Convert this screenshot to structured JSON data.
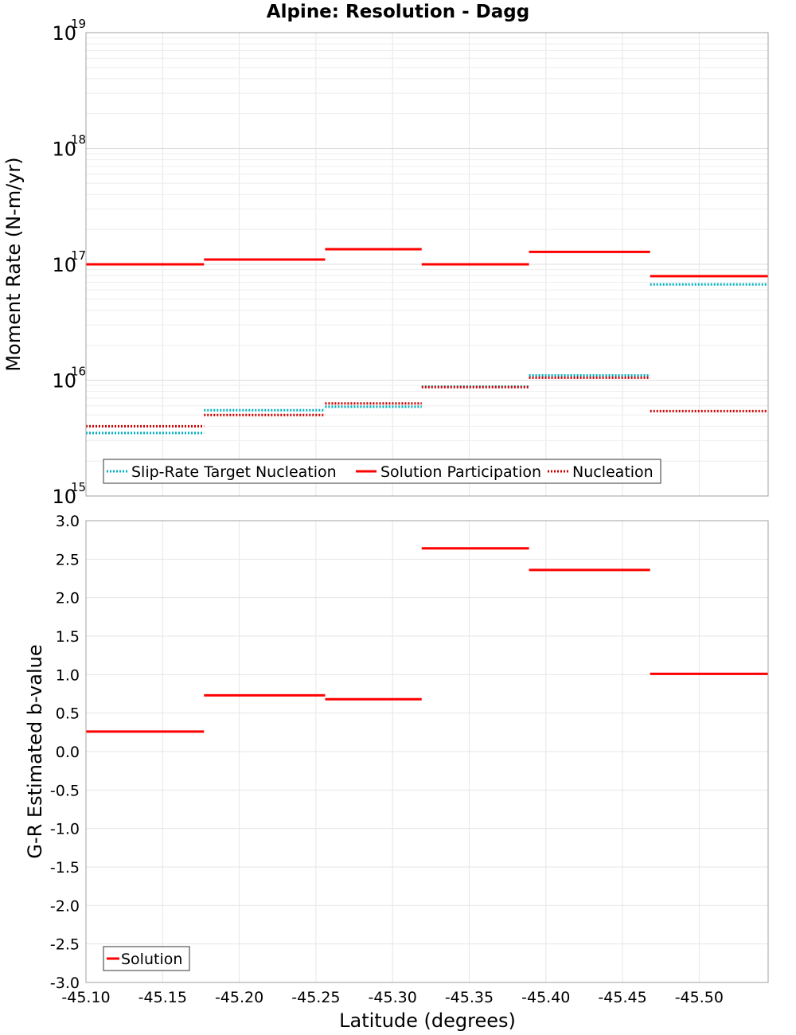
{
  "title": "Alpine: Resolution - Dagg",
  "colors": {
    "solution": "#ff0000",
    "nucleation": "#cc0000",
    "target": "#00b0c0",
    "grid": "#e6e6e6",
    "frame": "#a0a0a0"
  },
  "chart_data": [
    {
      "type": "line",
      "panel": "top",
      "ylabel": "Moment Rate (N-m/yr)",
      "yscale": "log",
      "ylim": [
        1000000000000000.0,
        1e+19
      ],
      "xlim": [
        -45.1,
        -45.545
      ],
      "y_ticks": [
        {
          "value": 1000000000000000.0,
          "base": "10",
          "exp": "15"
        },
        {
          "value": 1e+16,
          "base": "10",
          "exp": "16"
        },
        {
          "value": 1e+17,
          "base": "10",
          "exp": "17"
        },
        {
          "value": 1e+18,
          "base": "10",
          "exp": "18"
        },
        {
          "value": 1e+19,
          "base": "10",
          "exp": "19"
        }
      ],
      "grid": true,
      "legend_position": "bottom-left",
      "series": [
        {
          "name": "Slip-Rate Target Nucleation",
          "style": "dotted",
          "color_key": "target",
          "segments": [
            {
              "x0": -45.1,
              "x1": -45.177,
              "y": 3500000000000000.0
            },
            {
              "x0": -45.177,
              "x1": -45.256,
              "y": 5500000000000000.0
            },
            {
              "x0": -45.256,
              "x1": -45.319,
              "y": 5900000000000000.0
            },
            {
              "x0": -45.319,
              "x1": -45.389,
              "y": 8800000000000000.0
            },
            {
              "x0": -45.389,
              "x1": -45.468,
              "y": 1.1e+16
            },
            {
              "x0": -45.468,
              "x1": -45.545,
              "y": 6.7e+16
            }
          ]
        },
        {
          "name": "Solution Participation",
          "style": "solid",
          "color_key": "solution",
          "segments": [
            {
              "x0": -45.1,
              "x1": -45.177,
              "y": 1e+17
            },
            {
              "x0": -45.177,
              "x1": -45.256,
              "y": 1.1e+17
            },
            {
              "x0": -45.256,
              "x1": -45.319,
              "y": 1.35e+17
            },
            {
              "x0": -45.319,
              "x1": -45.389,
              "y": 1e+17
            },
            {
              "x0": -45.389,
              "x1": -45.468,
              "y": 1.28e+17
            },
            {
              "x0": -45.468,
              "x1": -45.545,
              "y": 7.9e+16
            }
          ]
        },
        {
          "name": "Nucleation",
          "style": "dotted",
          "color_key": "nucleation",
          "segments": [
            {
              "x0": -45.1,
              "x1": -45.177,
              "y": 4000000000000000.0
            },
            {
              "x0": -45.177,
              "x1": -45.256,
              "y": 5000000000000000.0
            },
            {
              "x0": -45.256,
              "x1": -45.319,
              "y": 6300000000000000.0
            },
            {
              "x0": -45.319,
              "x1": -45.389,
              "y": 8700000000000000.0
            },
            {
              "x0": -45.389,
              "x1": -45.468,
              "y": 1.05e+16
            },
            {
              "x0": -45.468,
              "x1": -45.545,
              "y": 5400000000000000.0
            }
          ]
        }
      ]
    },
    {
      "type": "line",
      "panel": "bottom",
      "xlabel": "Latitude (degrees)",
      "ylabel": "G-R Estimated b-value",
      "ylim": [
        -3.0,
        3.0
      ],
      "xlim": [
        -45.1,
        -45.545
      ],
      "y_ticks": [
        "3.0",
        "2.5",
        "2.0",
        "1.5",
        "1.0",
        "0.5",
        "0.0",
        "-0.5",
        "-1.0",
        "-1.5",
        "-2.0",
        "-2.5",
        "-3.0"
      ],
      "x_ticks": [
        "-45.10",
        "-45.15",
        "-45.20",
        "-45.25",
        "-45.30",
        "-45.35",
        "-45.40",
        "-45.45",
        "-45.50"
      ],
      "grid": true,
      "legend_position": "bottom-left",
      "series": [
        {
          "name": "Solution",
          "style": "solid",
          "color_key": "solution",
          "segments": [
            {
              "x0": -45.1,
              "x1": -45.177,
              "y": 0.26
            },
            {
              "x0": -45.177,
              "x1": -45.256,
              "y": 0.73
            },
            {
              "x0": -45.256,
              "x1": -45.319,
              "y": 0.68
            },
            {
              "x0": -45.319,
              "x1": -45.389,
              "y": 2.64
            },
            {
              "x0": -45.389,
              "x1": -45.468,
              "y": 2.36
            },
            {
              "x0": -45.468,
              "x1": -45.545,
              "y": 1.01
            }
          ]
        }
      ]
    }
  ]
}
